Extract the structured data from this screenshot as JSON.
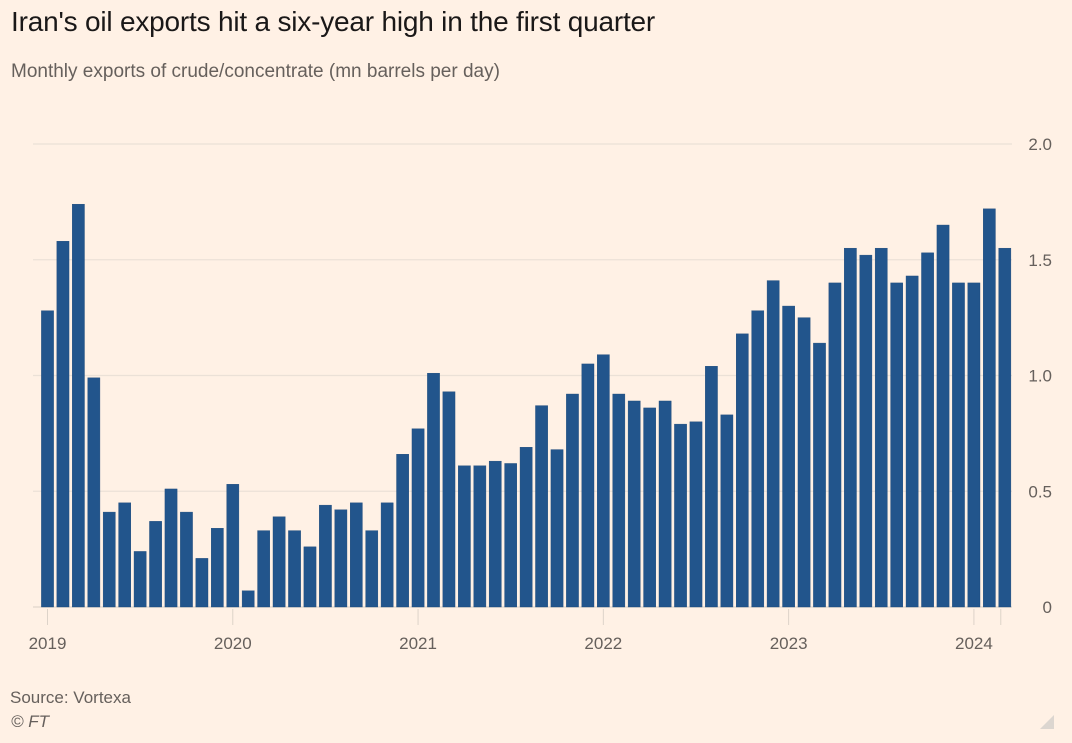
{
  "header": {
    "title": "Iran's oil exports hit a six-year high in the first quarter",
    "subtitle": "Monthly exports of crude/concentrate (mn barrels per day)"
  },
  "footer": {
    "source": "Source: Vortexa",
    "copyright": "© FT"
  },
  "colors": {
    "background": "#fff1e5",
    "bar": "#22558c",
    "gridline": "#ebe1d7",
    "axis_text": "#66605c"
  },
  "chart_data": {
    "type": "bar",
    "title": "Iran's oil exports hit a six-year high in the first quarter",
    "subtitle": "Monthly exports of crude/concentrate (mn barrels per day)",
    "xlabel": "",
    "ylabel": "mn barrels per day",
    "ylim": [
      0,
      2.0
    ],
    "yticks": [
      0,
      0.5,
      1.0,
      1.5,
      2.0
    ],
    "ytick_labels": [
      "0",
      "0.5",
      "1.0",
      "1.5",
      "2.0"
    ],
    "y_axis_side": "right",
    "grid": true,
    "xtick_labels": [
      {
        "label": "2019",
        "index": 0
      },
      {
        "label": "2020",
        "index": 12
      },
      {
        "label": "2021",
        "index": 24
      },
      {
        "label": "2022",
        "index": 36
      },
      {
        "label": "2023",
        "index": 48
      },
      {
        "label": "2024",
        "index": 60
      }
    ],
    "categories": [
      "2019-01",
      "2019-02",
      "2019-03",
      "2019-04",
      "2019-05",
      "2019-06",
      "2019-07",
      "2019-08",
      "2019-09",
      "2019-10",
      "2019-11",
      "2019-12",
      "2020-01",
      "2020-02",
      "2020-03",
      "2020-04",
      "2020-05",
      "2020-06",
      "2020-07",
      "2020-08",
      "2020-09",
      "2020-10",
      "2020-11",
      "2020-12",
      "2021-01",
      "2021-02",
      "2021-03",
      "2021-04",
      "2021-05",
      "2021-06",
      "2021-07",
      "2021-08",
      "2021-09",
      "2021-10",
      "2021-11",
      "2021-12",
      "2022-01",
      "2022-02",
      "2022-03",
      "2022-04",
      "2022-05",
      "2022-06",
      "2022-07",
      "2022-08",
      "2022-09",
      "2022-10",
      "2022-11",
      "2022-12",
      "2023-01",
      "2023-02",
      "2023-03",
      "2023-04",
      "2023-05",
      "2023-06",
      "2023-07",
      "2023-08",
      "2023-09",
      "2023-10",
      "2023-11",
      "2023-12",
      "2024-01",
      "2024-02",
      "2024-03"
    ],
    "values": [
      1.28,
      1.58,
      1.74,
      0.99,
      0.41,
      0.45,
      0.24,
      0.37,
      0.51,
      0.41,
      0.21,
      0.34,
      0.53,
      0.07,
      0.33,
      0.39,
      0.33,
      0.26,
      0.44,
      0.42,
      0.45,
      0.33,
      0.45,
      0.66,
      0.77,
      1.01,
      0.93,
      0.61,
      0.61,
      0.63,
      0.62,
      0.69,
      0.87,
      0.68,
      0.92,
      1.05,
      1.09,
      0.92,
      0.89,
      0.86,
      0.89,
      0.79,
      0.8,
      1.04,
      0.83,
      1.18,
      1.28,
      1.41,
      1.3,
      1.25,
      1.14,
      1.4,
      1.55,
      1.52,
      1.55,
      1.4,
      1.43,
      1.53,
      1.65,
      1.4,
      1.4,
      1.72,
      1.55
    ],
    "legend": null
  }
}
